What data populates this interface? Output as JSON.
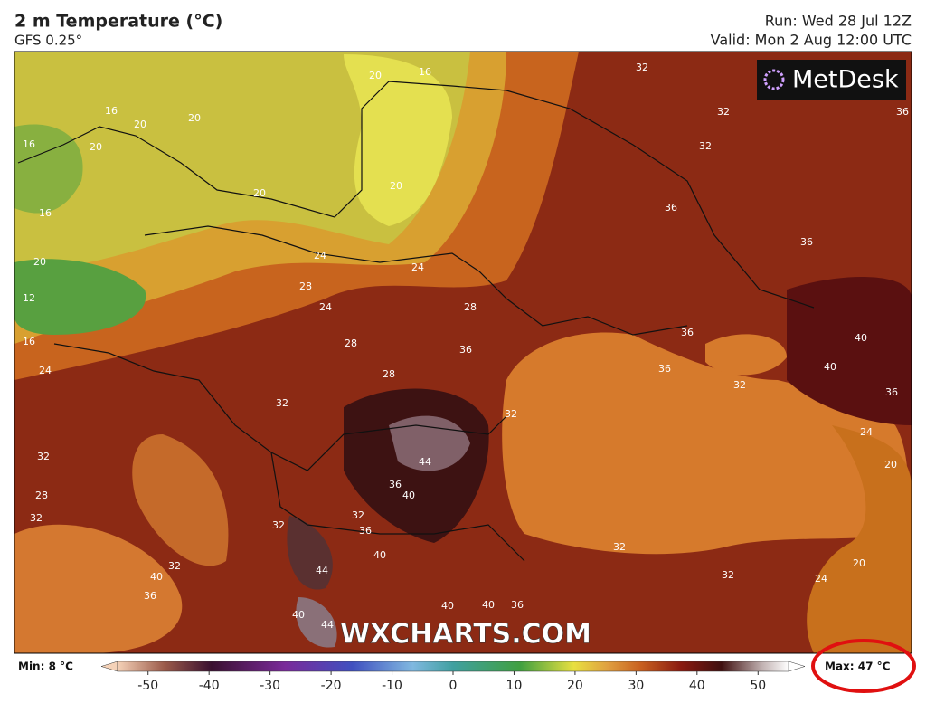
{
  "header": {
    "title": "2 m Temperature (°C)",
    "subtitle": "GFS 0.25°",
    "run": "Run: Wed 28 Jul 12Z",
    "valid": "Valid: Mon 2 Aug 12:00 UTC"
  },
  "logo": "MetDesk",
  "watermark": "WXCHARTS.COM",
  "contour_labels": [
    "16",
    "20",
    "16",
    "20",
    "20",
    "16",
    "20",
    "20",
    "20",
    "16",
    "20",
    "12",
    "16",
    "24",
    "32",
    "32",
    "32",
    "36",
    "36",
    "36",
    "24",
    "24",
    "28",
    "24",
    "28",
    "28",
    "36",
    "28",
    "32",
    "36",
    "36",
    "32",
    "40",
    "40",
    "36",
    "44",
    "36",
    "40",
    "32",
    "28",
    "32",
    "32",
    "32",
    "36",
    "44",
    "40",
    "40",
    "32",
    "36",
    "40",
    "44",
    "40",
    "40",
    "36",
    "32",
    "32",
    "32",
    "24",
    "20",
    "20",
    "24"
  ],
  "colorbar": {
    "min_label": "Min: 8 °C",
    "max_label": "Max: 47 °C",
    "lim": [
      -55,
      55
    ],
    "ticks": [
      -50,
      -40,
      -30,
      -20,
      -10,
      0,
      10,
      20,
      30,
      40,
      50
    ]
  }
}
